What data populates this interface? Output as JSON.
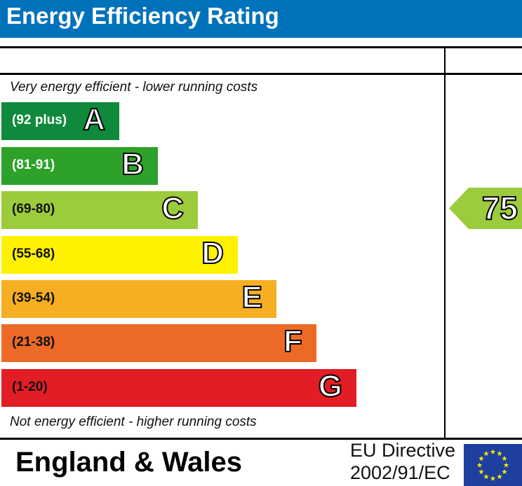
{
  "title": "Energy Efficiency Rating",
  "chart_data": {
    "type": "bar",
    "top_note": "Very energy efficient - lower running costs",
    "bottom_note": "Not energy efficient - higher running costs",
    "bands": [
      {
        "letter": "A",
        "range": "(92 plus)",
        "color": "#0f8a3c",
        "label_color": "#ffffff"
      },
      {
        "letter": "B",
        "range": "(81-91)",
        "color": "#2ea12a",
        "label_color": "#ffffff"
      },
      {
        "letter": "C",
        "range": "(69-80)",
        "color": "#9ccb3b",
        "label_color": "#111111"
      },
      {
        "letter": "D",
        "range": "(55-68)",
        "color": "#fff200",
        "label_color": "#111111"
      },
      {
        "letter": "E",
        "range": "(39-54)",
        "color": "#f6ae22",
        "label_color": "#111111"
      },
      {
        "letter": "F",
        "range": "(21-38)",
        "color": "#ec6a25",
        "label_color": "#111111"
      },
      {
        "letter": "G",
        "range": "(1-20)",
        "color": "#e31d25",
        "label_color": "#111111"
      }
    ],
    "current_rating": {
      "value": "75",
      "band": "C"
    }
  },
  "footer": {
    "region": "England & Wales",
    "directive_line1": "EU Directive",
    "directive_line2": "2002/91/EC"
  },
  "colors": {
    "header": "#0072bb",
    "eu_flag": "#1e3f9e",
    "eu_stars": "#ffed00"
  }
}
